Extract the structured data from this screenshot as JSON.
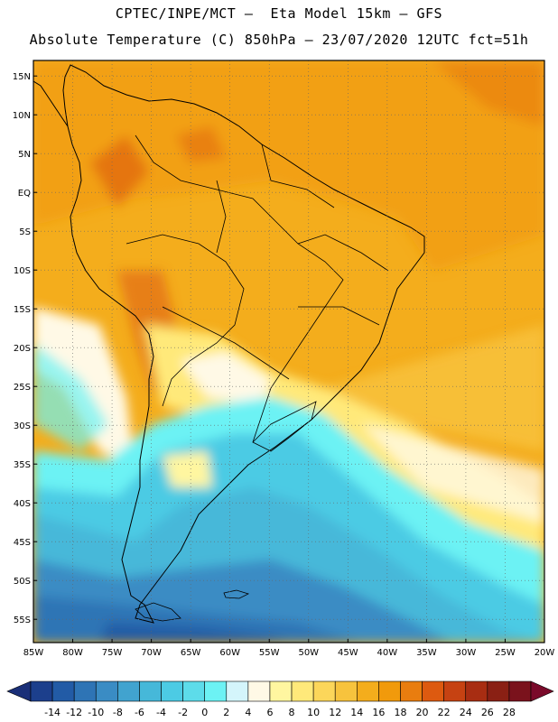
{
  "header": {
    "title_line1": "CPTEC/INPE/MCT –  Eta Model 15km – GFS",
    "title_line2": "Absolute Temperature (C) 850hPa – 23/07/2020 12UTC fct=51h"
  },
  "map": {
    "region": "South America",
    "lon_range": [
      -85,
      -20
    ],
    "lat_range": [
      -58,
      17
    ],
    "lat_labels": [
      {
        "value": 15,
        "text": "15N"
      },
      {
        "value": 10,
        "text": "10N"
      },
      {
        "value": 5,
        "text": "5N"
      },
      {
        "value": 0,
        "text": "EQ"
      },
      {
        "value": -5,
        "text": "5S"
      },
      {
        "value": -10,
        "text": "10S"
      },
      {
        "value": -15,
        "text": "15S"
      },
      {
        "value": -20,
        "text": "20S"
      },
      {
        "value": -25,
        "text": "25S"
      },
      {
        "value": -30,
        "text": "30S"
      },
      {
        "value": -35,
        "text": "35S"
      },
      {
        "value": -40,
        "text": "40S"
      },
      {
        "value": -45,
        "text": "45S"
      },
      {
        "value": -50,
        "text": "50S"
      },
      {
        "value": -55,
        "text": "55S"
      }
    ],
    "lon_labels": [
      {
        "value": -85,
        "text": "85W"
      },
      {
        "value": -80,
        "text": "80W"
      },
      {
        "value": -75,
        "text": "75W"
      },
      {
        "value": -70,
        "text": "70W"
      },
      {
        "value": -65,
        "text": "65W"
      },
      {
        "value": -60,
        "text": "60W"
      },
      {
        "value": -55,
        "text": "55W"
      },
      {
        "value": -50,
        "text": "50W"
      },
      {
        "value": -45,
        "text": "45W"
      },
      {
        "value": -40,
        "text": "40W"
      },
      {
        "value": -35,
        "text": "35W"
      },
      {
        "value": -30,
        "text": "30W"
      },
      {
        "value": -25,
        "text": "25W"
      },
      {
        "value": -20,
        "text": "20W"
      }
    ],
    "grid": "dotted"
  },
  "colorbar": {
    "labels": [
      "-14",
      "-12",
      "-10",
      "-8",
      "-6",
      "-4",
      "-2",
      "0",
      "2",
      "4",
      "6",
      "8",
      "10",
      "12",
      "14",
      "16",
      "18",
      "20",
      "22",
      "24",
      "26",
      "28"
    ],
    "colors": [
      "#1c3f8c",
      "#225ba6",
      "#2e74b5",
      "#3a8cc4",
      "#41a3cf",
      "#46b8d9",
      "#4ccbe4",
      "#5ddcea",
      "#6cf2f4",
      "#d4f5fb",
      "#fff9e6",
      "#fff6a0",
      "#ffe97a",
      "#fcd65a",
      "#f7c33d",
      "#f4ad1c",
      "#f19a0c",
      "#e97d0f",
      "#dd5a10",
      "#c64212",
      "#a82d12",
      "#8a2014",
      "#7a121c"
    ],
    "left_arrow_color": "#1a2f78",
    "right_arrow_color": "#7a0a2a"
  }
}
